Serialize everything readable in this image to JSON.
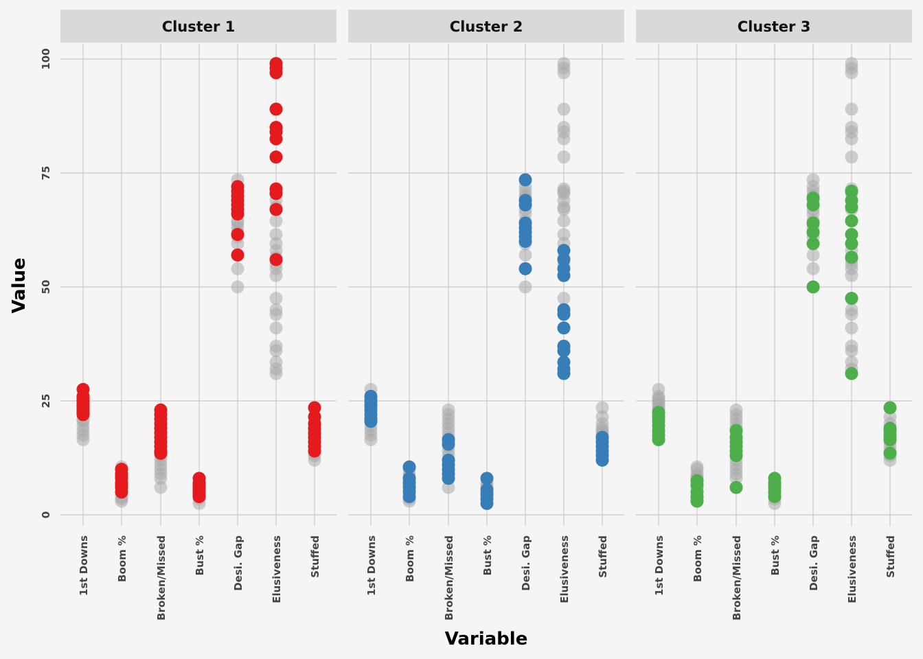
{
  "chart_data": {
    "type": "scatter",
    "xlabel": "Variable",
    "ylabel": "Value",
    "ylim": [
      0,
      100
    ],
    "yticks": [
      0,
      25,
      50,
      75,
      100
    ],
    "categories": [
      "1st Downs",
      "Boom %",
      "Broken/Missed",
      "Bust %",
      "Desi. Gap",
      "Elusiveness",
      "Stuffed"
    ],
    "background_color": "#aaaaaa",
    "grid": true,
    "panels": [
      {
        "title": "Cluster 1",
        "color": "#e41a1c",
        "values": {
          "1st Downs": [
            22,
            22.5,
            23,
            23.5,
            24,
            24.5,
            25,
            25.5,
            26,
            27.5
          ],
          "Boom %": [
            5,
            6,
            6.5,
            7,
            8,
            8.5,
            9,
            10
          ],
          "Broken/Missed": [
            13.5,
            14,
            15,
            16,
            17,
            18,
            19,
            20,
            21,
            22,
            23
          ],
          "Bust %": [
            4,
            4.5,
            5,
            5.5,
            6,
            6.5,
            7,
            8
          ],
          "Desi. Gap": [
            57,
            61.5,
            66,
            67,
            68,
            69,
            70,
            71,
            72
          ],
          "Elusiveness": [
            56,
            67,
            70.5,
            71.5,
            78.5,
            82.5,
            84,
            85,
            89,
            97,
            98,
            99
          ],
          "Stuffed": [
            14,
            15,
            16,
            17,
            18,
            19,
            20,
            21.5,
            23.5
          ]
        }
      },
      {
        "title": "Cluster 2",
        "color": "#377eb8",
        "values": {
          "1st Downs": [
            20.5,
            21,
            22,
            23,
            24,
            25,
            26
          ],
          "Boom %": [
            4,
            5,
            6,
            7,
            8,
            10.5
          ],
          "Broken/Missed": [
            8,
            9,
            10,
            11,
            12,
            15.5,
            16.5
          ],
          "Bust %": [
            2.5,
            3.5,
            4.5,
            5.5,
            8
          ],
          "Desi. Gap": [
            54,
            60,
            61,
            62,
            63,
            64,
            68,
            69,
            73.5
          ],
          "Elusiveness": [
            31,
            32,
            33.5,
            36,
            37,
            41,
            44,
            45,
            52.5,
            54,
            56,
            58
          ],
          "Stuffed": [
            12,
            13,
            14,
            15,
            16,
            17
          ]
        }
      },
      {
        "title": "Cluster 3",
        "color": "#4daf4a",
        "values": {
          "1st Downs": [
            16.5,
            17.5,
            18.5,
            19.5,
            20.5,
            21.5,
            22.5
          ],
          "Boom %": [
            3,
            4,
            5,
            6.5,
            7.5
          ],
          "Broken/Missed": [
            6,
            13,
            14,
            15,
            16,
            17,
            18.5
          ],
          "Bust %": [
            4,
            5,
            6,
            7,
            8
          ],
          "Desi. Gap": [
            50,
            59.5,
            62,
            64,
            68,
            69.5
          ],
          "Elusiveness": [
            31,
            47.5,
            56.5,
            59.5,
            61.5,
            64.5,
            67.5,
            69,
            71
          ],
          "Stuffed": [
            13.5,
            16.5,
            17.5,
            18.5,
            19,
            23.5
          ]
        }
      }
    ],
    "all_values": {
      "1st Downs": [
        16.5,
        17.5,
        18.5,
        19.5,
        20.5,
        21,
        22,
        22.5,
        23,
        23.5,
        24,
        24.5,
        25,
        25.5,
        26,
        27.5
      ],
      "Boom %": [
        3,
        3.5,
        4,
        5,
        6,
        6.5,
        7,
        7.5,
        8,
        8.5,
        9,
        10,
        10.5
      ],
      "Broken/Missed": [
        6,
        8,
        9,
        10,
        11,
        12,
        13,
        14,
        15,
        16,
        17,
        18,
        19,
        20,
        21,
        22,
        23
      ],
      "Bust %": [
        2.5,
        3.5,
        4,
        4.5,
        5,
        5.5,
        6,
        6.5,
        7,
        8
      ],
      "Desi. Gap": [
        50,
        54,
        57,
        59.5,
        61,
        62,
        63,
        64,
        64.5,
        66,
        67,
        68,
        69,
        69.5,
        70,
        71,
        72,
        73.5
      ],
      "Elusiveness": [
        31,
        32,
        33.5,
        36,
        37,
        41,
        44,
        45,
        47.5,
        52.5,
        54,
        55,
        56,
        56.5,
        58,
        59.5,
        61.5,
        64.5,
        67,
        67.5,
        69,
        70.5,
        71,
        71.5,
        78.5,
        82.5,
        84,
        85,
        89,
        97,
        98,
        99
      ],
      "Stuffed": [
        12,
        13,
        13.5,
        14,
        15,
        16,
        16.5,
        17,
        17.5,
        18,
        18.5,
        19,
        20,
        21.5,
        23.5
      ]
    }
  }
}
